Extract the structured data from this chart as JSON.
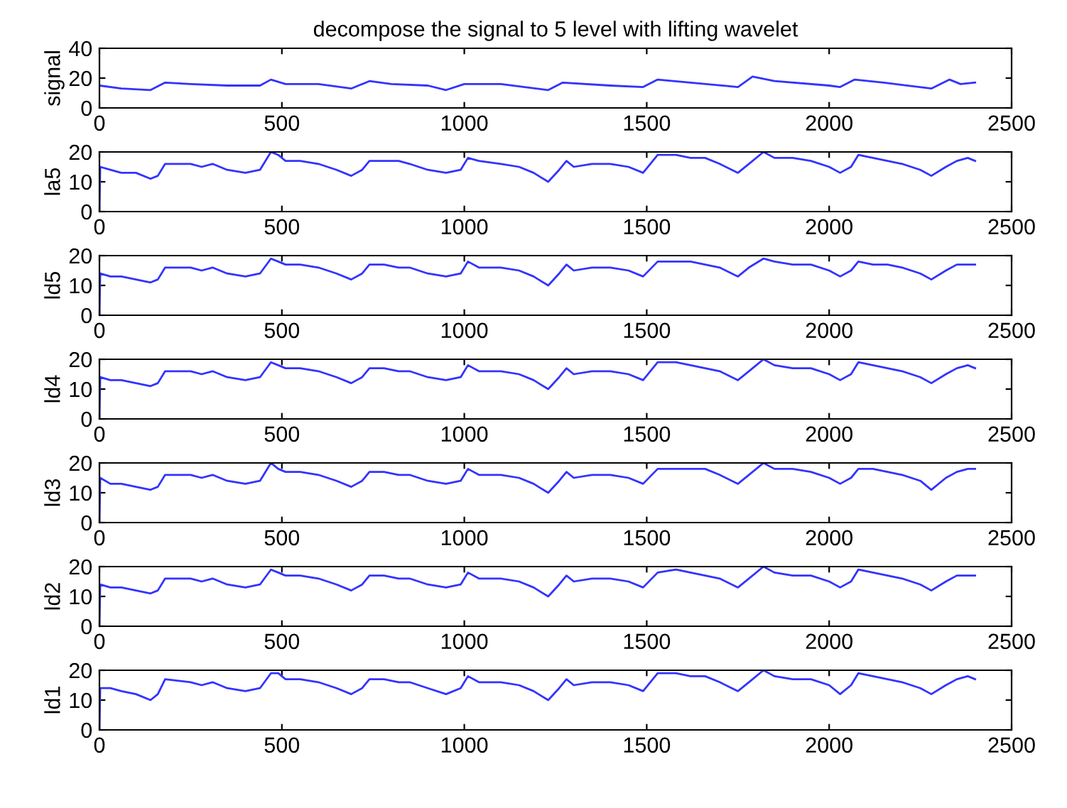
{
  "chart_data": [
    {
      "type": "line",
      "title": "decompose the signal to 5 level with lifting wavelet",
      "ylabel": "signal",
      "xlim": [
        0,
        2500
      ],
      "ylim": [
        0,
        40
      ],
      "xticks": [
        0,
        500,
        1000,
        1500,
        2000,
        2500
      ],
      "yticks": [
        0,
        20,
        40
      ],
      "x": [
        0,
        60,
        140,
        180,
        250,
        350,
        440,
        470,
        510,
        600,
        690,
        740,
        800,
        900,
        950,
        1000,
        1100,
        1230,
        1270,
        1400,
        1490,
        1530,
        1620,
        1750,
        1790,
        1850,
        2000,
        2030,
        2070,
        2150,
        2280,
        2330,
        2360,
        2400
      ],
      "series": [
        {
          "color": "#3333ff",
          "values": [
            15,
            13,
            12,
            17,
            16,
            15,
            15,
            19,
            16,
            16,
            13,
            18,
            16,
            15,
            12,
            16,
            16,
            12,
            17,
            15,
            14,
            19,
            17,
            14,
            21,
            18,
            15,
            14,
            19,
            17,
            13,
            19,
            16,
            17
          ]
        }
      ]
    },
    {
      "type": "line",
      "ylabel": "la5",
      "xlim": [
        0,
        2500
      ],
      "ylim": [
        0,
        20
      ],
      "xticks": [
        0,
        500,
        1000,
        1500,
        2000,
        2500
      ],
      "yticks": [
        0,
        10,
        20
      ],
      "x": [
        0,
        2,
        30,
        60,
        100,
        140,
        160,
        180,
        250,
        280,
        310,
        350,
        400,
        440,
        470,
        490,
        510,
        550,
        600,
        650,
        690,
        720,
        740,
        780,
        820,
        850,
        900,
        950,
        990,
        1010,
        1040,
        1100,
        1150,
        1190,
        1230,
        1260,
        1280,
        1300,
        1350,
        1400,
        1450,
        1490,
        1530,
        1580,
        1620,
        1660,
        1700,
        1750,
        1780,
        1820,
        1850,
        1900,
        1950,
        2000,
        2030,
        2060,
        2080,
        2120,
        2160,
        2200,
        2250,
        2280,
        2320,
        2350,
        2380,
        2400
      ],
      "series": [
        {
          "color": "#3333ff",
          "values": [
            0,
            15,
            14,
            13,
            13,
            11,
            12,
            16,
            16,
            15,
            16,
            14,
            13,
            14,
            20,
            19,
            17,
            17,
            16,
            14,
            12,
            14,
            17,
            17,
            17,
            16,
            14,
            13,
            14,
            18,
            17,
            16,
            15,
            13,
            10,
            14,
            17,
            15,
            16,
            16,
            15,
            13,
            19,
            19,
            18,
            18,
            16,
            13,
            16,
            20,
            18,
            18,
            17,
            15,
            13,
            15,
            19,
            18,
            17,
            16,
            14,
            12,
            15,
            17,
            18,
            17
          ]
        }
      ]
    },
    {
      "type": "line",
      "ylabel": "ld5",
      "xlim": [
        0,
        2500
      ],
      "ylim": [
        0,
        20
      ],
      "xticks": [
        0,
        500,
        1000,
        1500,
        2000,
        2500
      ],
      "yticks": [
        0,
        10,
        20
      ],
      "x": [
        0,
        2,
        30,
        60,
        100,
        140,
        160,
        180,
        250,
        280,
        310,
        350,
        400,
        440,
        470,
        490,
        510,
        550,
        600,
        650,
        690,
        720,
        740,
        780,
        820,
        850,
        900,
        950,
        990,
        1010,
        1040,
        1100,
        1150,
        1190,
        1230,
        1260,
        1280,
        1300,
        1350,
        1400,
        1450,
        1490,
        1530,
        1580,
        1620,
        1660,
        1700,
        1750,
        1780,
        1820,
        1850,
        1900,
        1950,
        2000,
        2030,
        2060,
        2080,
        2120,
        2160,
        2200,
        2250,
        2280,
        2320,
        2350,
        2380,
        2400
      ],
      "series": [
        {
          "color": "#3333ff",
          "values": [
            0,
            14,
            13,
            13,
            12,
            11,
            12,
            16,
            16,
            15,
            16,
            14,
            13,
            14,
            19,
            18,
            17,
            17,
            16,
            14,
            12,
            14,
            17,
            17,
            16,
            16,
            14,
            13,
            14,
            18,
            16,
            16,
            15,
            13,
            10,
            14,
            17,
            15,
            16,
            16,
            15,
            13,
            18,
            18,
            18,
            17,
            16,
            13,
            16,
            19,
            18,
            17,
            17,
            15,
            13,
            15,
            18,
            17,
            17,
            16,
            14,
            12,
            15,
            17,
            17,
            17
          ]
        }
      ]
    },
    {
      "type": "line",
      "ylabel": "ld4",
      "xlim": [
        0,
        2500
      ],
      "ylim": [
        0,
        20
      ],
      "xticks": [
        0,
        500,
        1000,
        1500,
        2000,
        2500
      ],
      "yticks": [
        0,
        10,
        20
      ],
      "x": [
        0,
        2,
        30,
        60,
        100,
        140,
        160,
        180,
        250,
        280,
        310,
        350,
        400,
        440,
        470,
        490,
        510,
        550,
        600,
        650,
        690,
        720,
        740,
        780,
        820,
        850,
        900,
        950,
        990,
        1010,
        1040,
        1100,
        1150,
        1190,
        1230,
        1260,
        1280,
        1300,
        1350,
        1400,
        1450,
        1490,
        1530,
        1580,
        1620,
        1660,
        1700,
        1750,
        1780,
        1820,
        1850,
        1900,
        1950,
        2000,
        2030,
        2060,
        2080,
        2120,
        2160,
        2200,
        2250,
        2280,
        2320,
        2350,
        2380,
        2400
      ],
      "series": [
        {
          "color": "#3333ff",
          "values": [
            0,
            14,
            13,
            13,
            12,
            11,
            12,
            16,
            16,
            15,
            16,
            14,
            13,
            14,
            19,
            18,
            17,
            17,
            16,
            14,
            12,
            14,
            17,
            17,
            16,
            16,
            14,
            13,
            14,
            18,
            16,
            16,
            15,
            13,
            10,
            14,
            17,
            15,
            16,
            16,
            15,
            13,
            19,
            19,
            18,
            17,
            16,
            13,
            16,
            20,
            18,
            17,
            17,
            15,
            13,
            15,
            19,
            18,
            17,
            16,
            14,
            12,
            15,
            17,
            18,
            17
          ]
        }
      ]
    },
    {
      "type": "line",
      "ylabel": "ld3",
      "xlim": [
        0,
        2500
      ],
      "ylim": [
        0,
        20
      ],
      "xticks": [
        0,
        500,
        1000,
        1500,
        2000,
        2500
      ],
      "yticks": [
        0,
        10,
        20
      ],
      "x": [
        0,
        2,
        30,
        60,
        100,
        140,
        160,
        180,
        250,
        280,
        310,
        350,
        400,
        440,
        470,
        490,
        510,
        550,
        600,
        650,
        690,
        720,
        740,
        780,
        820,
        850,
        900,
        950,
        990,
        1010,
        1040,
        1100,
        1150,
        1190,
        1230,
        1260,
        1280,
        1300,
        1350,
        1400,
        1450,
        1490,
        1530,
        1580,
        1620,
        1660,
        1700,
        1750,
        1780,
        1820,
        1850,
        1900,
        1950,
        2000,
        2030,
        2060,
        2080,
        2120,
        2160,
        2200,
        2250,
        2280,
        2320,
        2350,
        2380,
        2400
      ],
      "series": [
        {
          "color": "#3333ff",
          "values": [
            0,
            15,
            13,
            13,
            12,
            11,
            12,
            16,
            16,
            15,
            16,
            14,
            13,
            14,
            20,
            18,
            17,
            17,
            16,
            14,
            12,
            14,
            17,
            17,
            16,
            16,
            14,
            13,
            14,
            18,
            16,
            16,
            15,
            13,
            10,
            14,
            17,
            15,
            16,
            16,
            15,
            13,
            18,
            18,
            18,
            18,
            16,
            13,
            16,
            20,
            18,
            18,
            17,
            15,
            13,
            15,
            18,
            18,
            17,
            16,
            14,
            11,
            15,
            17,
            18,
            18
          ]
        }
      ]
    },
    {
      "type": "line",
      "ylabel": "ld2",
      "xlim": [
        0,
        2500
      ],
      "ylim": [
        0,
        20
      ],
      "xticks": [
        0,
        500,
        1000,
        1500,
        2000,
        2500
      ],
      "yticks": [
        0,
        10,
        20
      ],
      "x": [
        0,
        2,
        30,
        60,
        100,
        140,
        160,
        180,
        250,
        280,
        310,
        350,
        400,
        440,
        470,
        490,
        510,
        550,
        600,
        650,
        690,
        720,
        740,
        780,
        820,
        850,
        900,
        950,
        990,
        1010,
        1040,
        1100,
        1150,
        1190,
        1230,
        1260,
        1280,
        1300,
        1350,
        1400,
        1450,
        1490,
        1530,
        1580,
        1620,
        1660,
        1700,
        1750,
        1780,
        1820,
        1850,
        1900,
        1950,
        2000,
        2030,
        2060,
        2080,
        2120,
        2160,
        2200,
        2250,
        2280,
        2320,
        2350,
        2380,
        2400
      ],
      "series": [
        {
          "color": "#3333ff",
          "values": [
            0,
            14,
            13,
            13,
            12,
            11,
            12,
            16,
            16,
            15,
            16,
            14,
            13,
            14,
            19,
            18,
            17,
            17,
            16,
            14,
            12,
            14,
            17,
            17,
            16,
            16,
            14,
            13,
            14,
            18,
            16,
            16,
            15,
            13,
            10,
            14,
            17,
            15,
            16,
            16,
            15,
            13,
            18,
            19,
            18,
            17,
            16,
            13,
            16,
            20,
            18,
            17,
            17,
            15,
            13,
            15,
            19,
            18,
            17,
            16,
            14,
            12,
            15,
            17,
            17,
            17
          ]
        }
      ]
    },
    {
      "type": "line",
      "ylabel": "ld1",
      "xlim": [
        0,
        2500
      ],
      "ylim": [
        0,
        20
      ],
      "xticks": [
        0,
        500,
        1000,
        1500,
        2000,
        2500
      ],
      "yticks": [
        0,
        10,
        20
      ],
      "x": [
        0,
        2,
        30,
        60,
        100,
        140,
        160,
        180,
        250,
        280,
        310,
        350,
        400,
        440,
        470,
        490,
        510,
        550,
        600,
        650,
        690,
        720,
        740,
        780,
        820,
        850,
        900,
        950,
        990,
        1010,
        1040,
        1100,
        1150,
        1190,
        1230,
        1260,
        1280,
        1300,
        1350,
        1400,
        1450,
        1490,
        1530,
        1580,
        1620,
        1660,
        1700,
        1750,
        1780,
        1820,
        1850,
        1900,
        1950,
        2000,
        2030,
        2060,
        2080,
        2120,
        2160,
        2200,
        2250,
        2280,
        2320,
        2350,
        2380,
        2400
      ],
      "series": [
        {
          "color": "#3333ff",
          "values": [
            0,
            14,
            14,
            13,
            12,
            10,
            12,
            17,
            16,
            15,
            16,
            14,
            13,
            14,
            19,
            19,
            17,
            17,
            16,
            14,
            12,
            14,
            17,
            17,
            16,
            16,
            14,
            12,
            14,
            18,
            16,
            16,
            15,
            13,
            10,
            14,
            17,
            15,
            16,
            16,
            15,
            13,
            19,
            19,
            18,
            18,
            16,
            13,
            16,
            20,
            18,
            17,
            17,
            15,
            12,
            15,
            19,
            18,
            17,
            16,
            14,
            12,
            15,
            17,
            18,
            17
          ]
        }
      ]
    }
  ]
}
